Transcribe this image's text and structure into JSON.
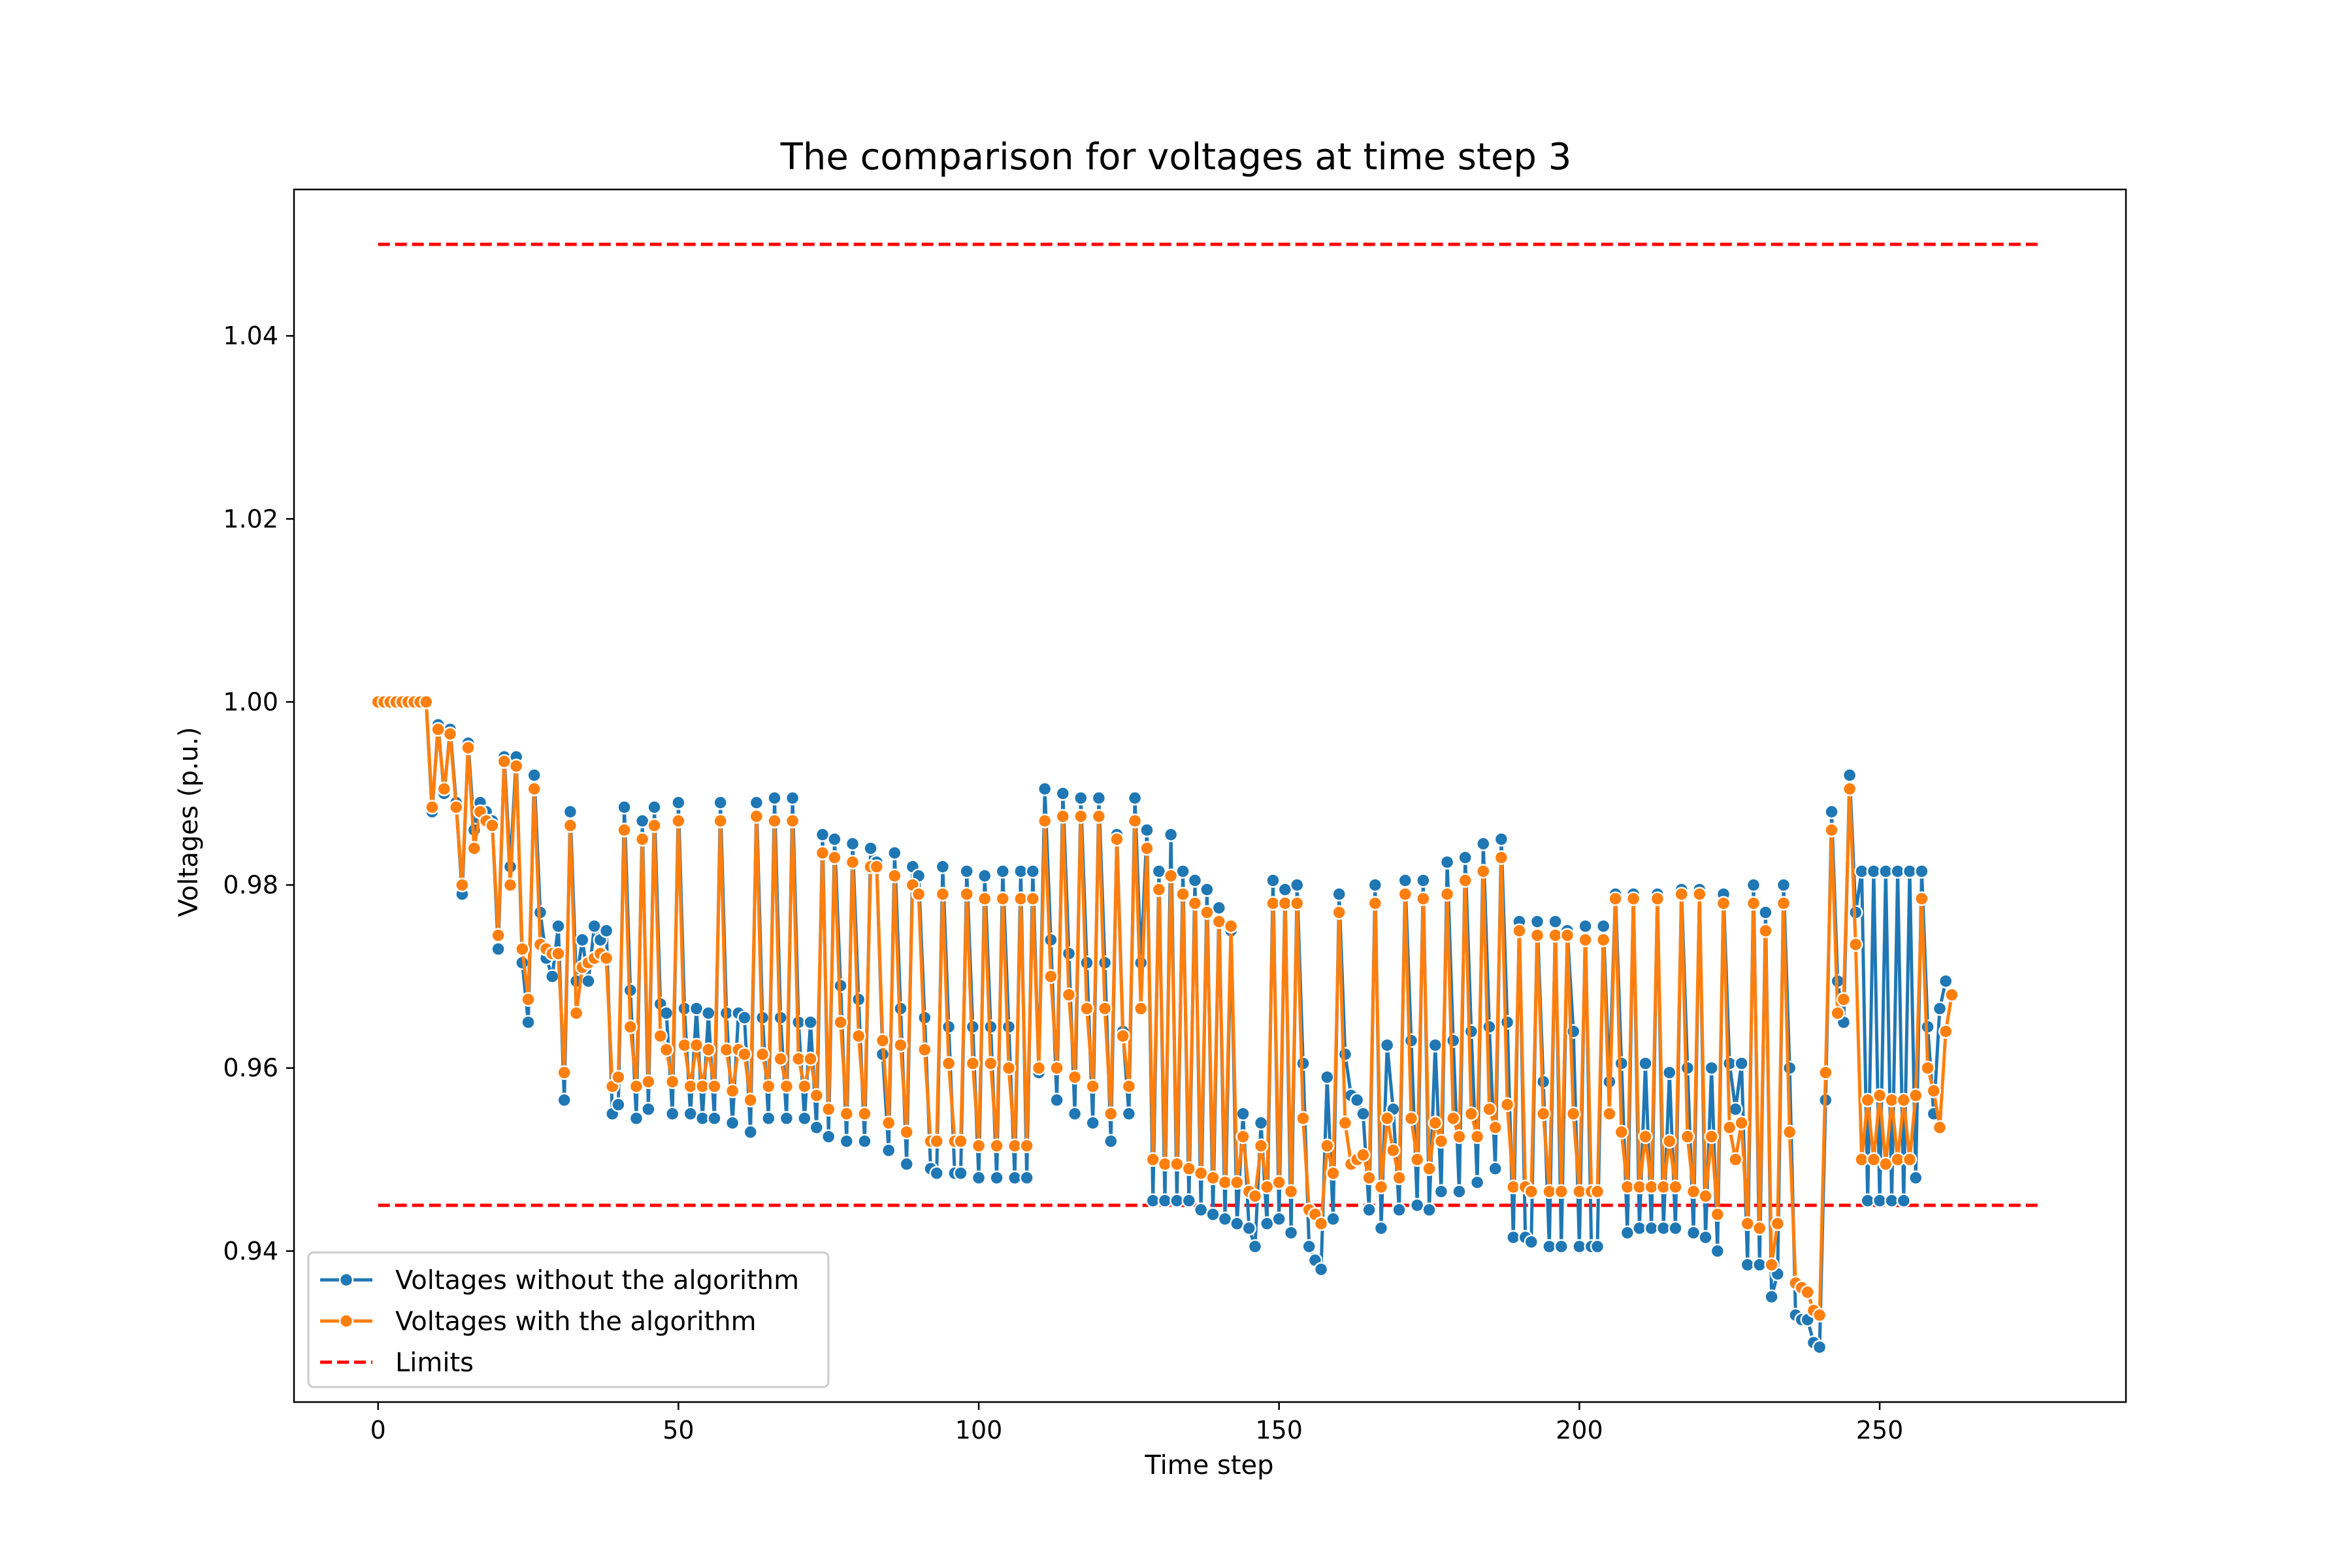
{
  "chart_data": {
    "type": "line",
    "title": "The comparison for voltages at time step 3",
    "xlabel": "Time step",
    "ylabel": "Voltages (p.u.)",
    "xlim": [
      -14,
      291
    ],
    "ylim": [
      0.9235,
      1.056
    ],
    "xticks": [
      0,
      50,
      100,
      150,
      200,
      250
    ],
    "yticks": [
      0.94,
      0.96,
      0.98,
      1.0,
      1.02,
      1.04
    ],
    "ytick_labels": [
      "0.94",
      "0.96",
      "0.98",
      "1.00",
      "1.02",
      "1.04"
    ],
    "grid": false,
    "legend_position": "lower-left",
    "limits": {
      "name": "Limits",
      "upper": 1.05,
      "lower": 0.945,
      "x": [
        0,
        277
      ],
      "color": "#ff0000"
    },
    "series": [
      {
        "name": "Voltages without the algorithm",
        "color": "#1f77b4",
        "x_start": 0,
        "values": [
          1.0,
          1.0,
          1.0,
          1.0,
          1.0,
          1.0,
          1.0,
          1.0,
          1.0,
          0.988,
          0.9975,
          0.99,
          0.997,
          0.989,
          0.979,
          0.9955,
          0.986,
          0.989,
          0.988,
          0.987,
          0.973,
          0.994,
          0.982,
          0.994,
          0.9715,
          0.965,
          0.992,
          0.977,
          0.972,
          0.97,
          0.9755,
          0.9565,
          0.988,
          0.9695,
          0.974,
          0.9695,
          0.9755,
          0.974,
          0.975,
          0.955,
          0.956,
          0.9885,
          0.9685,
          0.9545,
          0.987,
          0.9555,
          0.9885,
          0.967,
          0.966,
          0.955,
          0.989,
          0.9665,
          0.955,
          0.9665,
          0.9545,
          0.966,
          0.9545,
          0.989,
          0.966,
          0.954,
          0.966,
          0.9655,
          0.953,
          0.989,
          0.9655,
          0.9545,
          0.9895,
          0.9655,
          0.9545,
          0.9895,
          0.965,
          0.9545,
          0.965,
          0.9535,
          0.9855,
          0.9525,
          0.985,
          0.969,
          0.952,
          0.9845,
          0.9675,
          0.952,
          0.984,
          0.9825,
          0.9615,
          0.951,
          0.9835,
          0.9665,
          0.9495,
          0.982,
          0.981,
          0.9655,
          0.949,
          0.9485,
          0.982,
          0.9645,
          0.9485,
          0.9485,
          0.9815,
          0.9645,
          0.948,
          0.981,
          0.9645,
          0.948,
          0.9815,
          0.9645,
          0.948,
          0.9815,
          0.948,
          0.9815,
          0.9595,
          0.9905,
          0.974,
          0.9565,
          0.99,
          0.9725,
          0.955,
          0.9895,
          0.9715,
          0.954,
          0.9895,
          0.9715,
          0.952,
          0.9855,
          0.964,
          0.955,
          0.9895,
          0.9715,
          0.986,
          0.9455,
          0.9815,
          0.9455,
          0.9855,
          0.9455,
          0.9815,
          0.9455,
          0.9805,
          0.9445,
          0.9795,
          0.944,
          0.9775,
          0.9435,
          0.975,
          0.943,
          0.955,
          0.9425,
          0.9405,
          0.954,
          0.943,
          0.9805,
          0.9435,
          0.9795,
          0.942,
          0.98,
          0.9605,
          0.9405,
          0.939,
          0.938,
          0.959,
          0.9435,
          0.979,
          0.9615,
          0.957,
          0.9565,
          0.955,
          0.9445,
          0.98,
          0.9425,
          0.9625,
          0.9555,
          0.9445,
          0.9805,
          0.963,
          0.945,
          0.9805,
          0.9445,
          0.9625,
          0.9465,
          0.9825,
          0.963,
          0.9465,
          0.983,
          0.964,
          0.9475,
          0.9845,
          0.9645,
          0.949,
          0.985,
          0.965,
          0.9415,
          0.976,
          0.9415,
          0.941,
          0.976,
          0.9585,
          0.9405,
          0.976,
          0.9405,
          0.975,
          0.964,
          0.9405,
          0.9755,
          0.9405,
          0.9405,
          0.9755,
          0.9585,
          0.979,
          0.9605,
          0.942,
          0.979,
          0.9425,
          0.9605,
          0.9425,
          0.979,
          0.9425,
          0.9595,
          0.9425,
          0.9795,
          0.96,
          0.942,
          0.9795,
          0.9415,
          0.96,
          0.94,
          0.979,
          0.9605,
          0.9555,
          0.9605,
          0.9385,
          0.98,
          0.9385,
          0.977,
          0.935,
          0.9375,
          0.98,
          0.96,
          0.933,
          0.9325,
          0.9325,
          0.93,
          0.9295,
          0.9565,
          0.988,
          0.9695,
          0.965,
          0.992,
          0.977,
          0.9815,
          0.9455,
          0.9815,
          0.9455,
          0.9815,
          0.9455,
          0.9815,
          0.9455,
          0.9815,
          0.948,
          0.9815,
          0.9645,
          0.955,
          0.9665,
          0.9695
        ]
      },
      {
        "name": "Voltages with the algorithm",
        "color": "#ff7f0e",
        "x_start": 0,
        "values": [
          1.0,
          1.0,
          1.0,
          1.0,
          1.0,
          1.0,
          1.0,
          1.0,
          1.0,
          0.9885,
          0.997,
          0.9905,
          0.9965,
          0.9885,
          0.98,
          0.995,
          0.984,
          0.988,
          0.987,
          0.9865,
          0.9745,
          0.9935,
          0.98,
          0.993,
          0.973,
          0.9675,
          0.9905,
          0.9735,
          0.973,
          0.9725,
          0.9725,
          0.9595,
          0.9865,
          0.966,
          0.971,
          0.9715,
          0.972,
          0.9725,
          0.972,
          0.958,
          0.959,
          0.986,
          0.9645,
          0.958,
          0.985,
          0.9585,
          0.9865,
          0.9635,
          0.962,
          0.9585,
          0.987,
          0.9625,
          0.958,
          0.9625,
          0.958,
          0.962,
          0.958,
          0.987,
          0.962,
          0.9575,
          0.962,
          0.9615,
          0.9565,
          0.9875,
          0.9615,
          0.958,
          0.987,
          0.961,
          0.958,
          0.987,
          0.961,
          0.958,
          0.961,
          0.957,
          0.9835,
          0.9555,
          0.983,
          0.965,
          0.955,
          0.9825,
          0.9635,
          0.955,
          0.982,
          0.982,
          0.963,
          0.954,
          0.981,
          0.9625,
          0.953,
          0.98,
          0.979,
          0.962,
          0.952,
          0.952,
          0.979,
          0.9605,
          0.952,
          0.952,
          0.979,
          0.9605,
          0.9515,
          0.9785,
          0.9605,
          0.9515,
          0.9785,
          0.96,
          0.9515,
          0.9785,
          0.9515,
          0.9785,
          0.96,
          0.987,
          0.97,
          0.96,
          0.9875,
          0.968,
          0.959,
          0.9875,
          0.9665,
          0.958,
          0.9875,
          0.9665,
          0.955,
          0.985,
          0.9635,
          0.958,
          0.987,
          0.9665,
          0.984,
          0.95,
          0.9795,
          0.9495,
          0.981,
          0.9495,
          0.979,
          0.949,
          0.978,
          0.9485,
          0.977,
          0.948,
          0.976,
          0.9475,
          0.9755,
          0.9475,
          0.9525,
          0.9465,
          0.946,
          0.9515,
          0.947,
          0.978,
          0.9475,
          0.978,
          0.9465,
          0.978,
          0.9545,
          0.9445,
          0.944,
          0.943,
          0.9515,
          0.9485,
          0.977,
          0.954,
          0.9495,
          0.95,
          0.9505,
          0.948,
          0.978,
          0.947,
          0.9545,
          0.951,
          0.948,
          0.979,
          0.9545,
          0.95,
          0.9785,
          0.949,
          0.954,
          0.952,
          0.979,
          0.9545,
          0.9525,
          0.9805,
          0.955,
          0.9525,
          0.9815,
          0.9555,
          0.9535,
          0.983,
          0.956,
          0.947,
          0.975,
          0.947,
          0.9465,
          0.9745,
          0.955,
          0.9465,
          0.9745,
          0.9465,
          0.9745,
          0.955,
          0.9465,
          0.974,
          0.9465,
          0.9465,
          0.974,
          0.955,
          0.9785,
          0.953,
          0.947,
          0.9785,
          0.947,
          0.9525,
          0.947,
          0.9785,
          0.947,
          0.952,
          0.947,
          0.979,
          0.9525,
          0.9465,
          0.979,
          0.946,
          0.9525,
          0.944,
          0.978,
          0.9535,
          0.95,
          0.954,
          0.943,
          0.978,
          0.9425,
          0.975,
          0.9385,
          0.943,
          0.978,
          0.953,
          0.9365,
          0.936,
          0.9355,
          0.9335,
          0.933,
          0.9595,
          0.986,
          0.966,
          0.9675,
          0.9905,
          0.9735,
          0.95,
          0.9565,
          0.95,
          0.957,
          0.9495,
          0.9565,
          0.95,
          0.9565,
          0.95,
          0.957,
          0.9785,
          0.96,
          0.9575,
          0.9535,
          0.964,
          0.968
        ]
      }
    ]
  }
}
